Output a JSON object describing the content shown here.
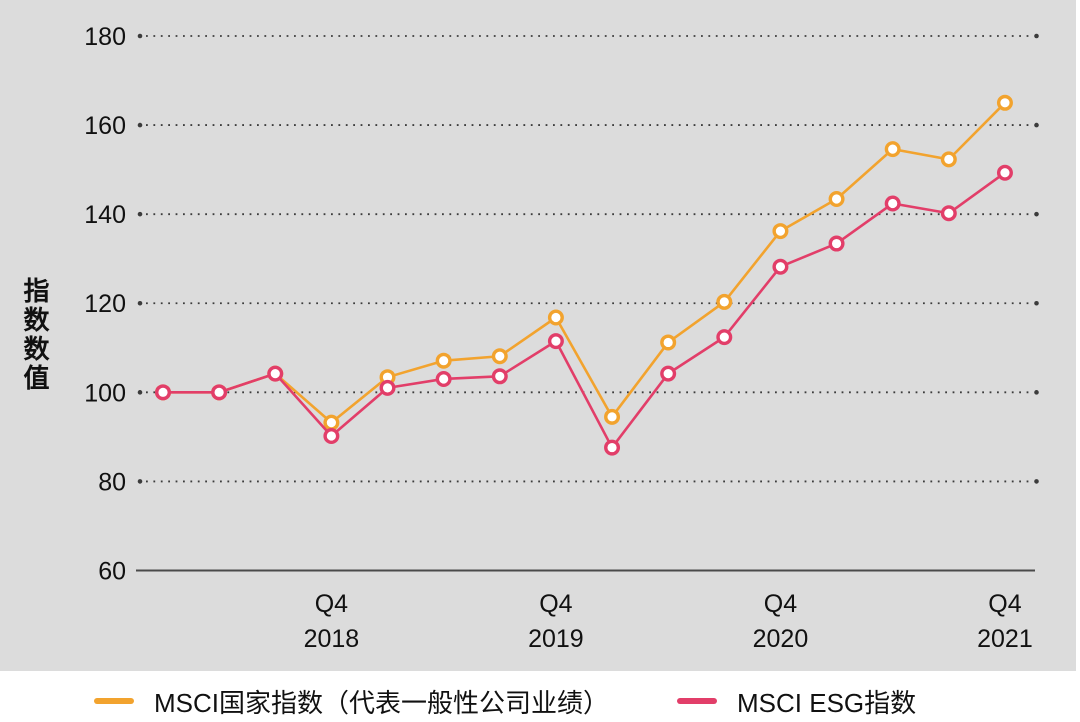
{
  "chart_data": {
    "type": "line",
    "title": "",
    "ylabel": "指数数值",
    "y_ticks": [
      180,
      160,
      140,
      120,
      100,
      80,
      60
    ],
    "ylim": [
      60,
      186
    ],
    "grid": "dotted-horizontal",
    "baseline_tick": 60,
    "x_tick_labels": [
      {
        "index": 3,
        "quarter": "Q4",
        "year": "2018"
      },
      {
        "index": 7,
        "quarter": "Q4",
        "year": "2019"
      },
      {
        "index": 11,
        "quarter": "Q4",
        "year": "2020"
      },
      {
        "index": 15,
        "quarter": "Q4",
        "year": "2021"
      }
    ],
    "series": [
      {
        "name": "MSCI国家指数（代表一般性公司业绩）",
        "color": "#F2A32E",
        "values": [
          100,
          100,
          104.2,
          93.2,
          103.4,
          107.1,
          108.1,
          116.8,
          94.5,
          111.2,
          120.3,
          136.2,
          143.4,
          154.6,
          152.3,
          165.0
        ]
      },
      {
        "name": "MSCI ESG指数",
        "color": "#E23E69",
        "values": [
          100,
          100,
          104.2,
          90.2,
          101.0,
          103.0,
          103.6,
          111.5,
          87.6,
          104.2,
          112.4,
          128.2,
          133.4,
          142.4,
          140.2,
          149.3
        ]
      }
    ],
    "legend_position": "bottom",
    "marker": "open-circle-white-fill",
    "colors": {
      "background": "#DCDCDC",
      "axis": "#4A4A4A",
      "grid_dot": "#3C3C3C",
      "text": "#111111"
    }
  }
}
